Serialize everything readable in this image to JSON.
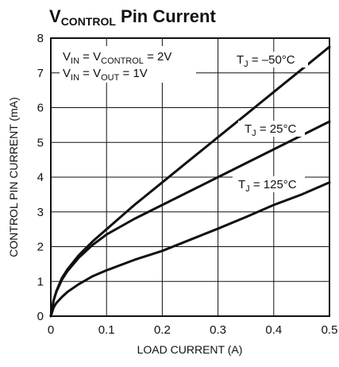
{
  "chart_data": {
    "type": "line",
    "title_parts": [
      {
        "text": "V",
        "sub": false
      },
      {
        "text": "CONTROL",
        "sub": true
      },
      {
        "text": " Pin Current",
        "sub": false
      }
    ],
    "xlabel": "LOAD CURRENT (A)",
    "ylabel": "CONTROL PIN CURRENT (mA)",
    "xlim": [
      0,
      0.5
    ],
    "ylim": [
      0,
      8
    ],
    "x_ticks": [
      "0",
      "0.1",
      "0.2",
      "0.3",
      "0.4",
      "0.5"
    ],
    "y_ticks": [
      "0",
      "1",
      "2",
      "3",
      "4",
      "5",
      "6",
      "7",
      "8"
    ],
    "grid": true,
    "conditions": [
      [
        {
          "text": "V",
          "sub": false
        },
        {
          "text": "IN",
          "sub": true
        },
        {
          "text": " = V",
          "sub": false
        },
        {
          "text": "CONTROL",
          "sub": true
        },
        {
          "text": " = 2V",
          "sub": false
        }
      ],
      [
        {
          "text": "V",
          "sub": false
        },
        {
          "text": "IN",
          "sub": true
        },
        {
          "text": " = V",
          "sub": false
        },
        {
          "text": "OUT",
          "sub": true
        },
        {
          "text": " = 1V",
          "sub": false
        }
      ]
    ],
    "series": [
      {
        "label_parts": [
          {
            "text": "T",
            "sub": false
          },
          {
            "text": "J",
            "sub": true
          },
          {
            "text": " = –50°C",
            "sub": false
          }
        ],
        "x": [
          0,
          0.005,
          0.01,
          0.02,
          0.03,
          0.05,
          0.075,
          0.1,
          0.15,
          0.2,
          0.25,
          0.3,
          0.35,
          0.4,
          0.45,
          0.5
        ],
        "values": [
          0,
          0.45,
          0.72,
          1.1,
          1.35,
          1.75,
          2.15,
          2.5,
          3.2,
          3.85,
          4.5,
          5.15,
          5.8,
          6.45,
          7.1,
          7.75
        ]
      },
      {
        "label_parts": [
          {
            "text": "T",
            "sub": false
          },
          {
            "text": "J",
            "sub": true
          },
          {
            "text": " = 25°C",
            "sub": false
          }
        ],
        "x": [
          0,
          0.005,
          0.01,
          0.02,
          0.03,
          0.05,
          0.075,
          0.1,
          0.15,
          0.2,
          0.25,
          0.3,
          0.35,
          0.4,
          0.45,
          0.5
        ],
        "values": [
          0,
          0.45,
          0.7,
          1.05,
          1.3,
          1.68,
          2.05,
          2.35,
          2.8,
          3.2,
          3.6,
          4.0,
          4.4,
          4.8,
          5.2,
          5.6
        ]
      },
      {
        "label_parts": [
          {
            "text": "T",
            "sub": false
          },
          {
            "text": "J",
            "sub": true
          },
          {
            "text": " = 125°C",
            "sub": false
          }
        ],
        "x": [
          0,
          0.005,
          0.01,
          0.02,
          0.03,
          0.05,
          0.075,
          0.1,
          0.15,
          0.2,
          0.25,
          0.3,
          0.35,
          0.4,
          0.45,
          0.5
        ],
        "values": [
          0,
          0.25,
          0.38,
          0.55,
          0.7,
          0.92,
          1.15,
          1.32,
          1.62,
          1.88,
          2.2,
          2.52,
          2.85,
          3.2,
          3.5,
          3.85
        ]
      }
    ]
  }
}
